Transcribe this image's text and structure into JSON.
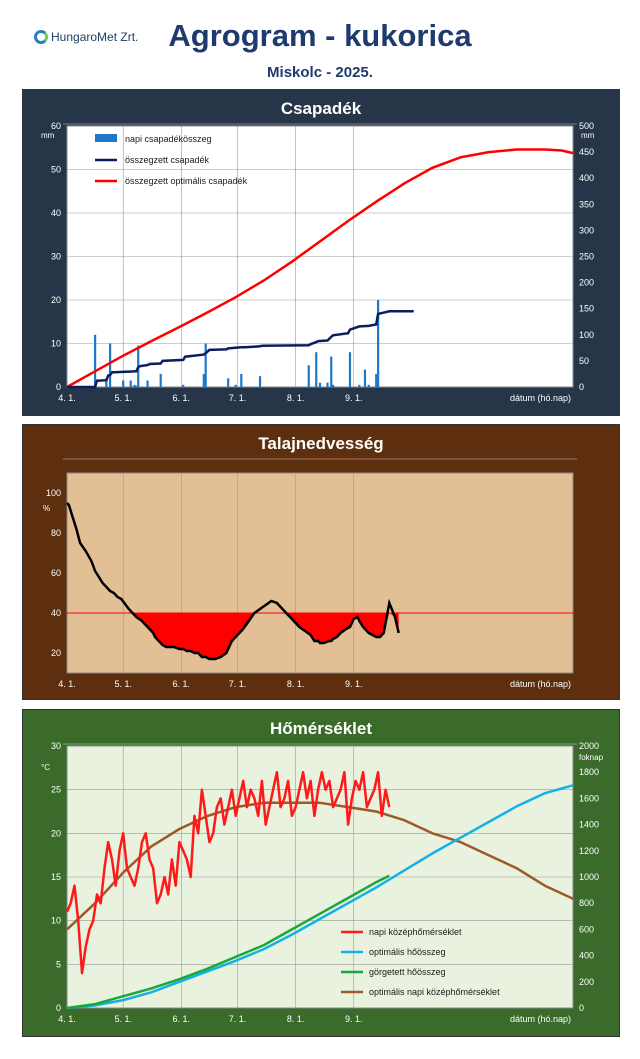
{
  "header": {
    "logo": "HungaroMet Zrt.",
    "title": "Agrogram - kukorica",
    "subtitle": "Miskolc - 2025."
  },
  "colors": {
    "precip_bg": "#263648",
    "soil_bg": "#5e2f0e",
    "temp_bg": "#3a6b2a",
    "plot_bg": "#ffffff",
    "soil_plot": "#e2bf94",
    "temp_plot": "#e9f2de"
  },
  "date_ticks": [
    "4. 1.",
    "5. 1.",
    "6. 1.",
    "7. 1.",
    "8. 1.",
    "9. 1."
  ],
  "chart_data": [
    {
      "type": "bar",
      "title": "Csapadék",
      "xlabel": "dátum (hó.nap)",
      "ylabel": "mm",
      "y2label": "mm",
      "ylim": [
        0,
        60
      ],
      "y2lim": [
        0,
        500
      ],
      "yticks": [
        "0",
        "10",
        "20",
        "30",
        "40",
        "50",
        "60"
      ],
      "y2ticks": [
        "0",
        "50",
        "100",
        "150",
        "200",
        "250",
        "300",
        "350",
        "400",
        "450",
        "500"
      ],
      "legend": [
        "napi csapadékösszeg",
        "összegzett csapadék",
        "összegzett optimális csapadék"
      ],
      "legend_position": "top-left",
      "bars": {
        "name": "napi csapadékösszeg",
        "days": [
          15,
          21,
          23,
          30,
          34,
          36,
          37,
          38,
          43,
          50,
          62,
          73,
          74,
          86,
          90,
          93,
          103,
          129,
          133,
          135,
          139,
          141,
          142,
          151,
          156,
          159,
          161,
          165,
          166
        ],
        "values": [
          12,
          2,
          10,
          1.5,
          1.5,
          0.5,
          0.3,
          9.5,
          1.5,
          3,
          0.5,
          3,
          10,
          2,
          0.5,
          3,
          2.5,
          5,
          8,
          1,
          1,
          7,
          0.5,
          8,
          0.5,
          4,
          0.5,
          3,
          20
        ]
      },
      "cumulative": {
        "name": "összegzett csapadék",
        "days": [
          0,
          15,
          16,
          21,
          22,
          23,
          24,
          37,
          38,
          39,
          43,
          44,
          50,
          51,
          62,
          63,
          73,
          74,
          76,
          85,
          86,
          93,
          95,
          103,
          104,
          129,
          130,
          133,
          134,
          139,
          141,
          142,
          150,
          151,
          156,
          161,
          165,
          166,
          172,
          185
        ],
        "values": [
          0,
          0,
          12,
          13,
          22,
          23,
          28,
          30,
          38,
          40,
          42,
          44,
          45,
          50,
          52,
          58,
          62,
          65,
          71,
          72,
          74,
          76,
          76,
          78,
          79,
          80,
          82,
          86,
          88,
          89,
          96,
          99,
          103,
          110,
          116,
          117,
          120,
          140,
          145,
          145
        ]
      },
      "optimal": {
        "name": "összegzett optimális csapadék",
        "days": [
          0,
          15,
          30,
          45,
          60,
          75,
          90,
          105,
          120,
          135,
          150,
          165,
          180,
          195,
          210,
          225,
          240,
          255,
          264,
          270
        ],
        "values": [
          0,
          30,
          60,
          88,
          115,
          143,
          172,
          204,
          240,
          279,
          318,
          355,
          390,
          420,
          440,
          450,
          455,
          455,
          453,
          448
        ]
      }
    },
    {
      "type": "line",
      "title": "Talajnedvesség",
      "xlabel": "dátum (hó.nap)",
      "ylabel": "%",
      "ylim": [
        10,
        110
      ],
      "yticks": [
        "20",
        "40",
        "60",
        "80",
        "100"
      ],
      "threshold": 40,
      "series": [
        {
          "name": "talajnedvesség",
          "days": [
            0,
            1,
            3,
            5,
            7,
            10,
            13,
            15,
            17,
            19,
            21,
            23,
            25,
            27,
            29,
            33,
            35,
            37,
            40,
            41,
            42,
            44,
            46,
            47,
            49,
            51,
            53,
            55,
            57,
            60,
            62,
            64,
            66,
            68,
            70,
            72,
            74,
            76,
            79,
            82,
            85,
            88,
            91,
            94,
            97,
            100,
            103,
            106,
            109,
            112,
            115,
            118,
            121,
            124,
            127,
            130,
            132,
            134,
            135,
            137,
            140,
            141,
            142,
            144,
            146,
            149,
            151,
            153,
            155,
            156,
            158,
            160,
            161,
            163,
            165,
            167,
            169,
            172,
            175,
            177
          ],
          "values": [
            95,
            94,
            88,
            82,
            75,
            71,
            66,
            61,
            58,
            55,
            53,
            51,
            50,
            48,
            47,
            42,
            40,
            38,
            36,
            35,
            34,
            32,
            30,
            28,
            26,
            24,
            23,
            23,
            23,
            22,
            22,
            21,
            21,
            20,
            20,
            18,
            18,
            17,
            17,
            18,
            20,
            26,
            29,
            32,
            36,
            40,
            42,
            44,
            46,
            45,
            42,
            39,
            36,
            33,
            31,
            29,
            26,
            26,
            25,
            25,
            26,
            26,
            27,
            28,
            30,
            32,
            33,
            37,
            38,
            36,
            33,
            31,
            30,
            29,
            28,
            28,
            30,
            45,
            38,
            30
          ]
        }
      ]
    },
    {
      "type": "line",
      "title": "Hőmérséklet",
      "xlabel": "dátum (hó.nap)",
      "ylabel": "°C",
      "y2label": "foknap",
      "ylim": [
        0,
        30
      ],
      "y2lim": [
        0,
        2000
      ],
      "yticks": [
        "0",
        "5",
        "10",
        "15",
        "20",
        "25",
        "30"
      ],
      "y2ticks": [
        "0",
        "200",
        "400",
        "600",
        "800",
        "1000",
        "1200",
        "1400",
        "1600",
        "1800",
        "2000"
      ],
      "legend": [
        "napi középhőmérséklet",
        "optimális hőösszeg",
        "görgetett hőösszeg",
        "optimális napi középhőmérséklet"
      ],
      "legend_position": "bottom-right",
      "series": [
        {
          "name": "napi középhőmérséklet",
          "axis": "left",
          "days": [
            0,
            2,
            4,
            6,
            8,
            10,
            12,
            14,
            16,
            18,
            20,
            22,
            24,
            26,
            28,
            30,
            32,
            34,
            36,
            38,
            40,
            42,
            44,
            46,
            48,
            50,
            52,
            54,
            56,
            58,
            60,
            62,
            64,
            66,
            68,
            70,
            72,
            74,
            76,
            78,
            80,
            82,
            84,
            86,
            88,
            90,
            92,
            94,
            96,
            98,
            100,
            102,
            104,
            106,
            108,
            110,
            112,
            114,
            116,
            118,
            120,
            122,
            124,
            126,
            128,
            130,
            132,
            134,
            136,
            138,
            140,
            142,
            144,
            146,
            148,
            150,
            152,
            154,
            156,
            158,
            160,
            162,
            164,
            166,
            168,
            170,
            172
          ],
          "values": [
            11,
            12,
            14,
            10,
            4,
            7,
            9,
            10,
            13,
            12,
            16,
            19,
            17,
            14,
            18,
            20,
            16,
            15,
            14,
            16,
            19,
            20,
            17,
            16,
            12,
            13,
            15,
            13,
            17,
            14,
            19,
            18,
            17,
            15,
            22,
            20,
            25,
            22,
            19,
            20,
            23,
            24,
            21,
            23,
            25,
            22,
            24,
            26,
            23,
            25,
            24,
            22,
            26,
            21,
            23,
            25,
            27,
            23,
            24,
            26,
            22,
            23,
            25,
            27,
            24,
            26,
            22,
            25,
            27,
            25,
            26,
            23,
            24,
            25,
            27,
            21,
            24,
            26,
            25,
            27,
            23,
            24,
            25,
            27,
            22,
            25,
            23
          ]
        },
        {
          "name": "optimális hőösszeg",
          "axis": "right",
          "days": [
            0,
            15,
            30,
            45,
            60,
            75,
            90,
            105,
            120,
            135,
            150,
            165,
            180,
            195,
            210,
            225,
            240,
            255,
            270
          ],
          "values": [
            0,
            20,
            60,
            120,
            200,
            280,
            360,
            450,
            560,
            680,
            800,
            920,
            1050,
            1180,
            1300,
            1420,
            1540,
            1640,
            1700
          ]
        },
        {
          "name": "görgetett hőösszeg",
          "axis": "right",
          "days": [
            0,
            15,
            30,
            45,
            60,
            75,
            90,
            105,
            120,
            135,
            150,
            165,
            172
          ],
          "values": [
            0,
            30,
            90,
            150,
            220,
            300,
            390,
            480,
            600,
            720,
            840,
            960,
            1010
          ]
        },
        {
          "name": "optimális napi középhőmérséklet",
          "axis": "left",
          "days": [
            0,
            15,
            30,
            45,
            60,
            75,
            90,
            105,
            120,
            135,
            150,
            165,
            180,
            195,
            210,
            225,
            240,
            255,
            270
          ],
          "values": [
            9,
            12,
            15.5,
            18.5,
            20.5,
            22,
            23,
            23.5,
            23.5,
            23.5,
            23,
            22.5,
            21.5,
            20,
            19,
            17.5,
            16,
            14,
            12.5
          ]
        }
      ]
    }
  ]
}
